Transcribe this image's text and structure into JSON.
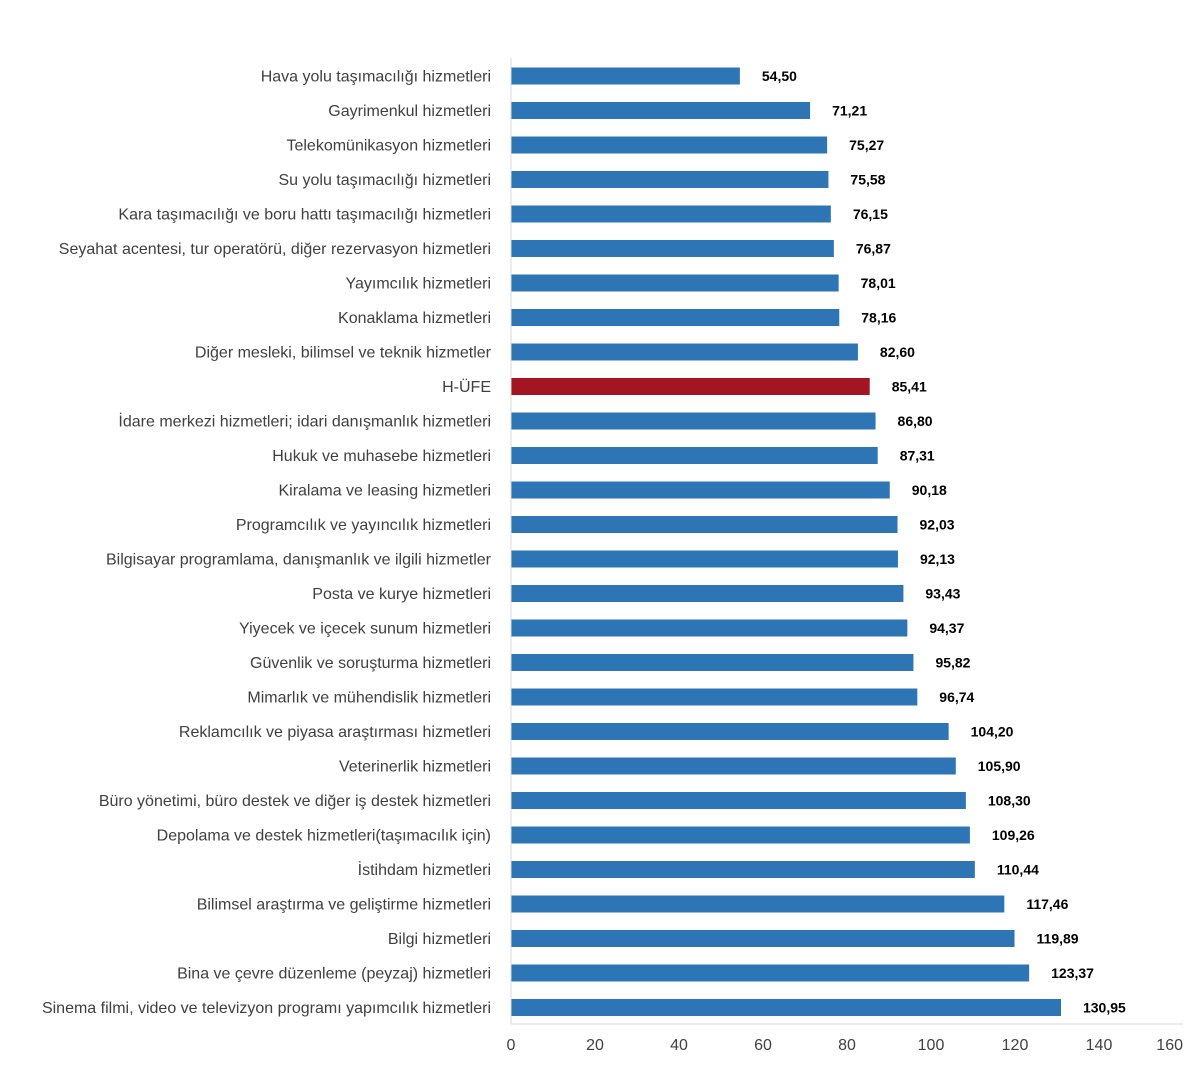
{
  "chart_data": {
    "type": "bar",
    "orientation": "horizontal",
    "title": "",
    "xlabel": "",
    "ylabel": "",
    "xlim": [
      0,
      160
    ],
    "ticks": [
      0,
      20,
      40,
      60,
      80,
      100,
      120,
      140,
      160
    ],
    "grid": false,
    "legend": "none",
    "colors": {
      "default": "#2E75B6",
      "highlight": "#A31520"
    },
    "highlight_category": "H-ÜFE",
    "categories": [
      "Hava yolu taşımacılığı hizmetleri",
      "Gayrimenkul hizmetleri",
      "Telekomünikasyon hizmetleri",
      "Su yolu taşımacılığı hizmetleri",
      "Kara taşımacılığı ve boru hattı taşımacılığı hizmetleri",
      "Seyahat acentesi, tur operatörü, diğer rezervasyon hizmetleri",
      "Yayımcılık hizmetleri",
      "Konaklama hizmetleri",
      "Diğer mesleki, bilimsel ve teknik hizmetler",
      "H-ÜFE",
      "İdare merkezi hizmetleri; idari danışmanlık hizmetleri",
      "Hukuk ve muhasebe hizmetleri",
      "Kiralama ve leasing hizmetleri",
      "Programcılık ve yayıncılık hizmetleri",
      "Bilgisayar programlama, danışmanlık ve ilgili hizmetler",
      "Posta ve kurye hizmetleri",
      "Yiyecek ve içecek sunum hizmetleri",
      "Güvenlik ve soruşturma hizmetleri",
      "Mimarlık ve mühendislik hizmetleri",
      "Reklamcılık ve piyasa araştırması hizmetleri",
      "Veterinerlik hizmetleri",
      "Büro yönetimi, büro destek ve diğer iş destek hizmetleri",
      "Depolama ve destek hizmetleri(taşımacılık için)",
      "İstihdam hizmetleri",
      "Bilimsel araştırma ve geliştirme hizmetleri",
      "Bilgi hizmetleri",
      "Bina ve çevre düzenleme (peyzaj) hizmetleri",
      "Sinema filmi, video ve televizyon programı yapımcılık hizmetleri"
    ],
    "values": [
      54.5,
      71.21,
      75.27,
      75.58,
      76.15,
      76.87,
      78.01,
      78.16,
      82.6,
      85.41,
      86.8,
      87.31,
      90.18,
      92.03,
      92.13,
      93.43,
      94.37,
      95.82,
      96.74,
      104.2,
      105.9,
      108.3,
      109.26,
      110.44,
      117.46,
      119.89,
      123.37,
      130.95
    ],
    "value_labels": [
      "54,50",
      "71,21",
      "75,27",
      "75,58",
      "76,15",
      "76,87",
      "78,01",
      "78,16",
      "82,60",
      "85,41",
      "86,80",
      "87,31",
      "90,18",
      "92,03",
      "92,13",
      "93,43",
      "94,37",
      "95,82",
      "96,74",
      "104,20",
      "105,90",
      "108,30",
      "109,26",
      "110,44",
      "117,46",
      "119,89",
      "123,37",
      "130,95"
    ]
  }
}
